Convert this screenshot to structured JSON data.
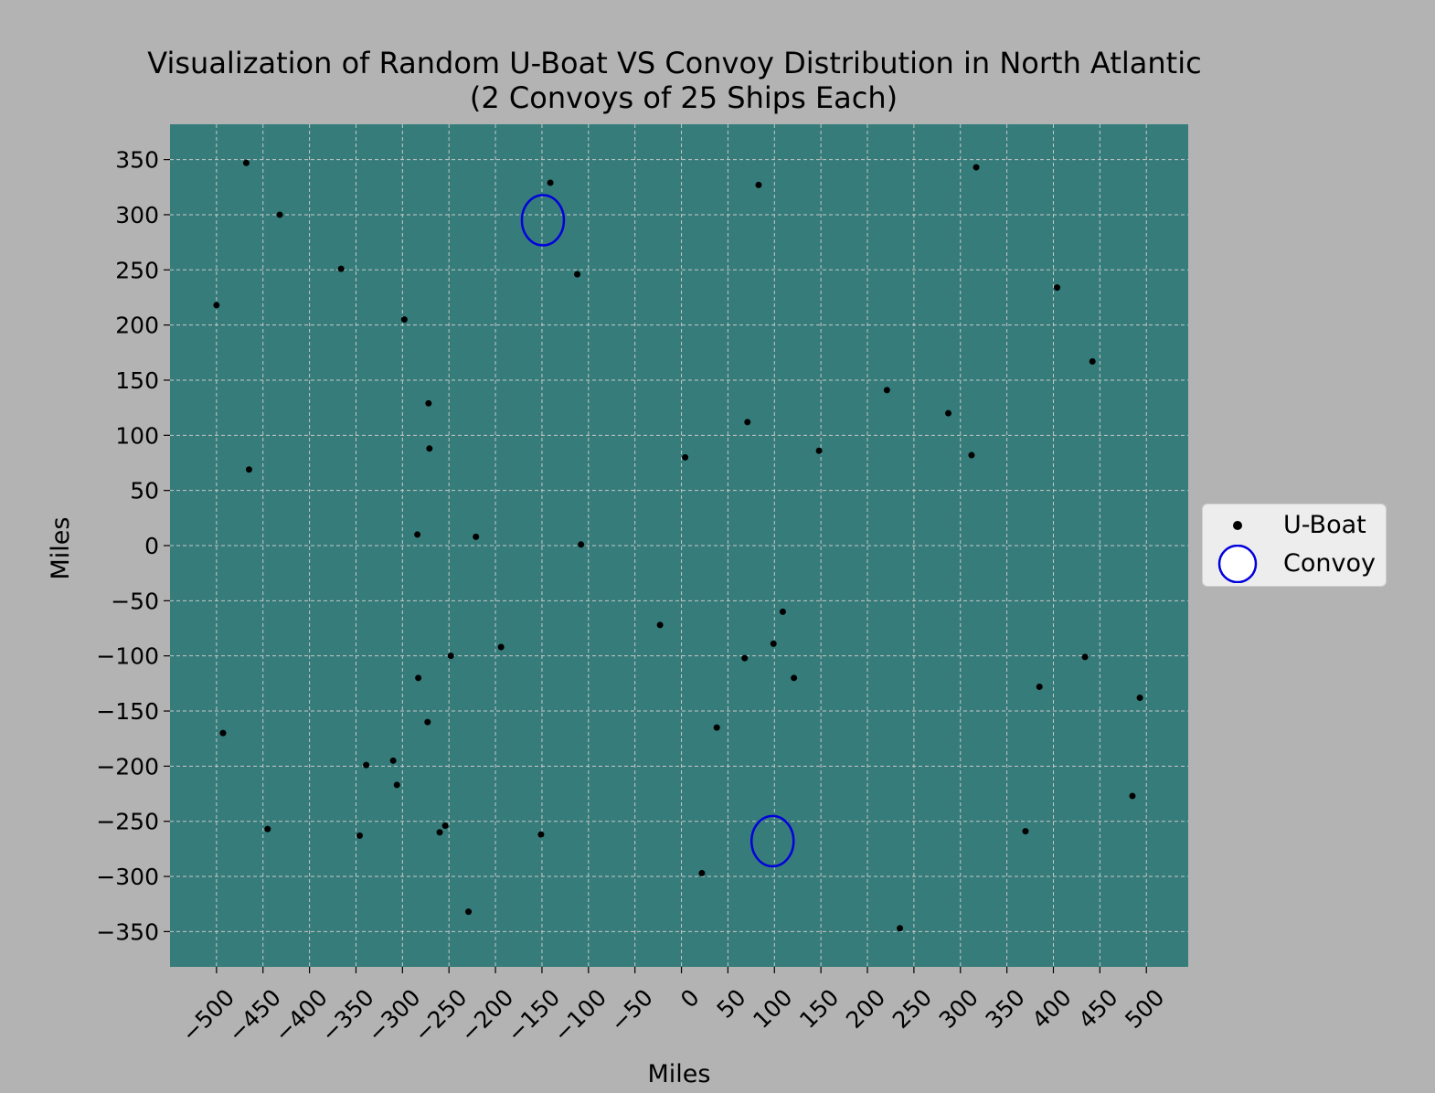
{
  "chart_data": {
    "type": "scatter",
    "title": "Visualization of Random U-Boat VS Convoy Distribution in North Atlantic",
    "subtitle": "(2 Convoys of 25 Ships Each)",
    "xlabel": "Miles",
    "ylabel": "Miles",
    "xlim": [
      -550,
      545
    ],
    "ylim": [
      -382,
      382
    ],
    "xticks": [
      -500,
      -450,
      -400,
      -350,
      -300,
      -250,
      -200,
      -150,
      -100,
      -50,
      0,
      50,
      100,
      150,
      200,
      250,
      300,
      350,
      400,
      450,
      500
    ],
    "yticks": [
      -350,
      -300,
      -250,
      -200,
      -150,
      -100,
      -50,
      0,
      50,
      100,
      150,
      200,
      250,
      300,
      350
    ],
    "tick_labels_x": [
      "−500",
      "−450",
      "−400",
      "−350",
      "−300",
      "−250",
      "−200",
      "−150",
      "−100",
      "−50",
      "0",
      "50",
      "100",
      "150",
      "200",
      "250",
      "300",
      "350",
      "400",
      "450",
      "500"
    ],
    "tick_labels_y": [
      "−350",
      "−300",
      "−250",
      "−200",
      "−150",
      "−100",
      "−50",
      "0",
      "50",
      "100",
      "150",
      "200",
      "250",
      "300",
      "350"
    ],
    "grid": true,
    "legend_position": "center-right outside",
    "colors": {
      "background": "#b3b3b3",
      "plot_area": "#367c7b",
      "grid": "#c8c8c8",
      "uboat": "#000000",
      "convoy": "#0000dd"
    },
    "series": [
      {
        "name": "U-Boat",
        "marker": "dot",
        "points": [
          [
            -468,
            347
          ],
          [
            -432,
            300
          ],
          [
            -366,
            251
          ],
          [
            -500,
            218
          ],
          [
            -298,
            205
          ],
          [
            -272,
            129
          ],
          [
            -465,
            69
          ],
          [
            -271,
            88
          ],
          [
            -284,
            10
          ],
          [
            -221,
            8
          ],
          [
            -108,
            1
          ],
          [
            -141,
            329
          ],
          [
            -112,
            246
          ],
          [
            83,
            327
          ],
          [
            317,
            343
          ],
          [
            404,
            234
          ],
          [
            442,
            167
          ],
          [
            221,
            141
          ],
          [
            287,
            120
          ],
          [
            71,
            112
          ],
          [
            148,
            86
          ],
          [
            312,
            82
          ],
          [
            4,
            80
          ],
          [
            -23,
            -72
          ],
          [
            109,
            -60
          ],
          [
            99,
            -89
          ],
          [
            68,
            -102
          ],
          [
            121,
            -120
          ],
          [
            38,
            -165
          ],
          [
            -248,
            -100
          ],
          [
            -194,
            -92
          ],
          [
            -283,
            -120
          ],
          [
            -493,
            -170
          ],
          [
            -273,
            -160
          ],
          [
            -339,
            -199
          ],
          [
            -310,
            -195
          ],
          [
            -306,
            -217
          ],
          [
            -445,
            -257
          ],
          [
            -346,
            -263
          ],
          [
            -254,
            -254
          ],
          [
            -260,
            -260
          ],
          [
            -151,
            -262
          ],
          [
            -229,
            -332
          ],
          [
            22,
            -297
          ],
          [
            235,
            -347
          ],
          [
            370,
            -259
          ],
          [
            385,
            -128
          ],
          [
            434,
            -101
          ],
          [
            485,
            -227
          ],
          [
            493,
            -138
          ]
        ]
      },
      {
        "name": "Convoy",
        "marker": "circle",
        "points": [
          [
            -149,
            295
          ],
          [
            98,
            -268
          ]
        ]
      }
    ]
  }
}
